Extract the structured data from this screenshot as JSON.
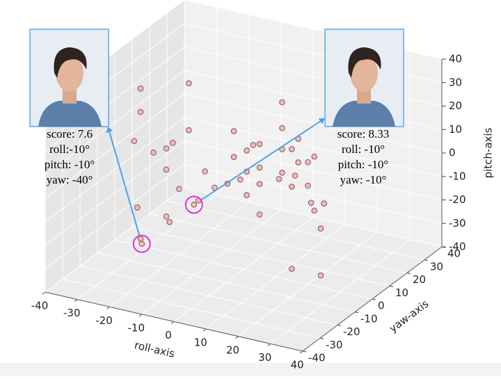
{
  "chart_data": {
    "type": "scatter3d",
    "xlabel": "roll-axis",
    "ylabel": "yaw-axis",
    "zlabel": "pitch-axis",
    "xlim": [
      -40,
      40
    ],
    "ylim": [
      -40,
      40
    ],
    "zlim": [
      -40,
      40
    ],
    "xticks": [
      -40,
      -30,
      -20,
      -10,
      0,
      10,
      20,
      30,
      40
    ],
    "yticks": [
      -40,
      -30,
      -20,
      -10,
      0,
      10,
      20,
      30,
      40
    ],
    "zticks": [
      -40,
      -30,
      -20,
      -10,
      0,
      10,
      20,
      30,
      40
    ],
    "grid": true,
    "color": "#f2b9b9",
    "x": [
      -32,
      -32,
      -34,
      -28,
      -24,
      -22,
      -24,
      -20,
      -17,
      -17,
      -14,
      -24,
      -23,
      -33,
      -32,
      -10,
      -10,
      -12,
      -3,
      -3,
      1,
      3,
      5,
      5,
      1,
      -1,
      -5,
      -9,
      1,
      5,
      5,
      12,
      12,
      12,
      15,
      17,
      17,
      20,
      22,
      11,
      12,
      16,
      15,
      20,
      21,
      22,
      25,
      24,
      15,
      24
    ],
    "y": [
      0,
      0,
      0,
      0,
      0,
      0,
      0,
      0,
      0,
      0,
      0,
      0,
      0,
      0,
      0,
      -40,
      -10,
      0,
      0,
      0,
      0,
      0,
      0,
      0,
      0,
      0,
      0,
      0,
      0,
      0,
      0,
      0,
      0,
      0,
      0,
      0,
      0,
      0,
      0,
      0,
      0,
      0,
      0,
      0,
      0,
      0,
      0,
      0,
      0,
      0
    ],
    "z": [
      27,
      17,
      4,
      1,
      4,
      7,
      -5,
      -12,
      34,
      14,
      -15,
      -25,
      -27,
      -24,
      -37,
      -10,
      -10,
      -2,
      18,
      7,
      11,
      14,
      15,
      5,
      2,
      -2,
      -5,
      -8,
      -8,
      -2,
      -15,
      35,
      24,
      15,
      16,
      21,
      11,
      12,
      15,
      2,
      5,
      5,
      0,
      2,
      -5,
      -8,
      -4,
      -15,
      -35,
      -35
    ],
    "annotations": [
      {
        "lines": [
          "score: 7.6",
          "roll:-10°",
          "pitch: -10°",
          "yaw: -40°"
        ]
      },
      {
        "lines": [
          "score: 8.33",
          "roll: -10°",
          "pitch: -10°",
          "yaw: -10°"
        ]
      }
    ]
  }
}
